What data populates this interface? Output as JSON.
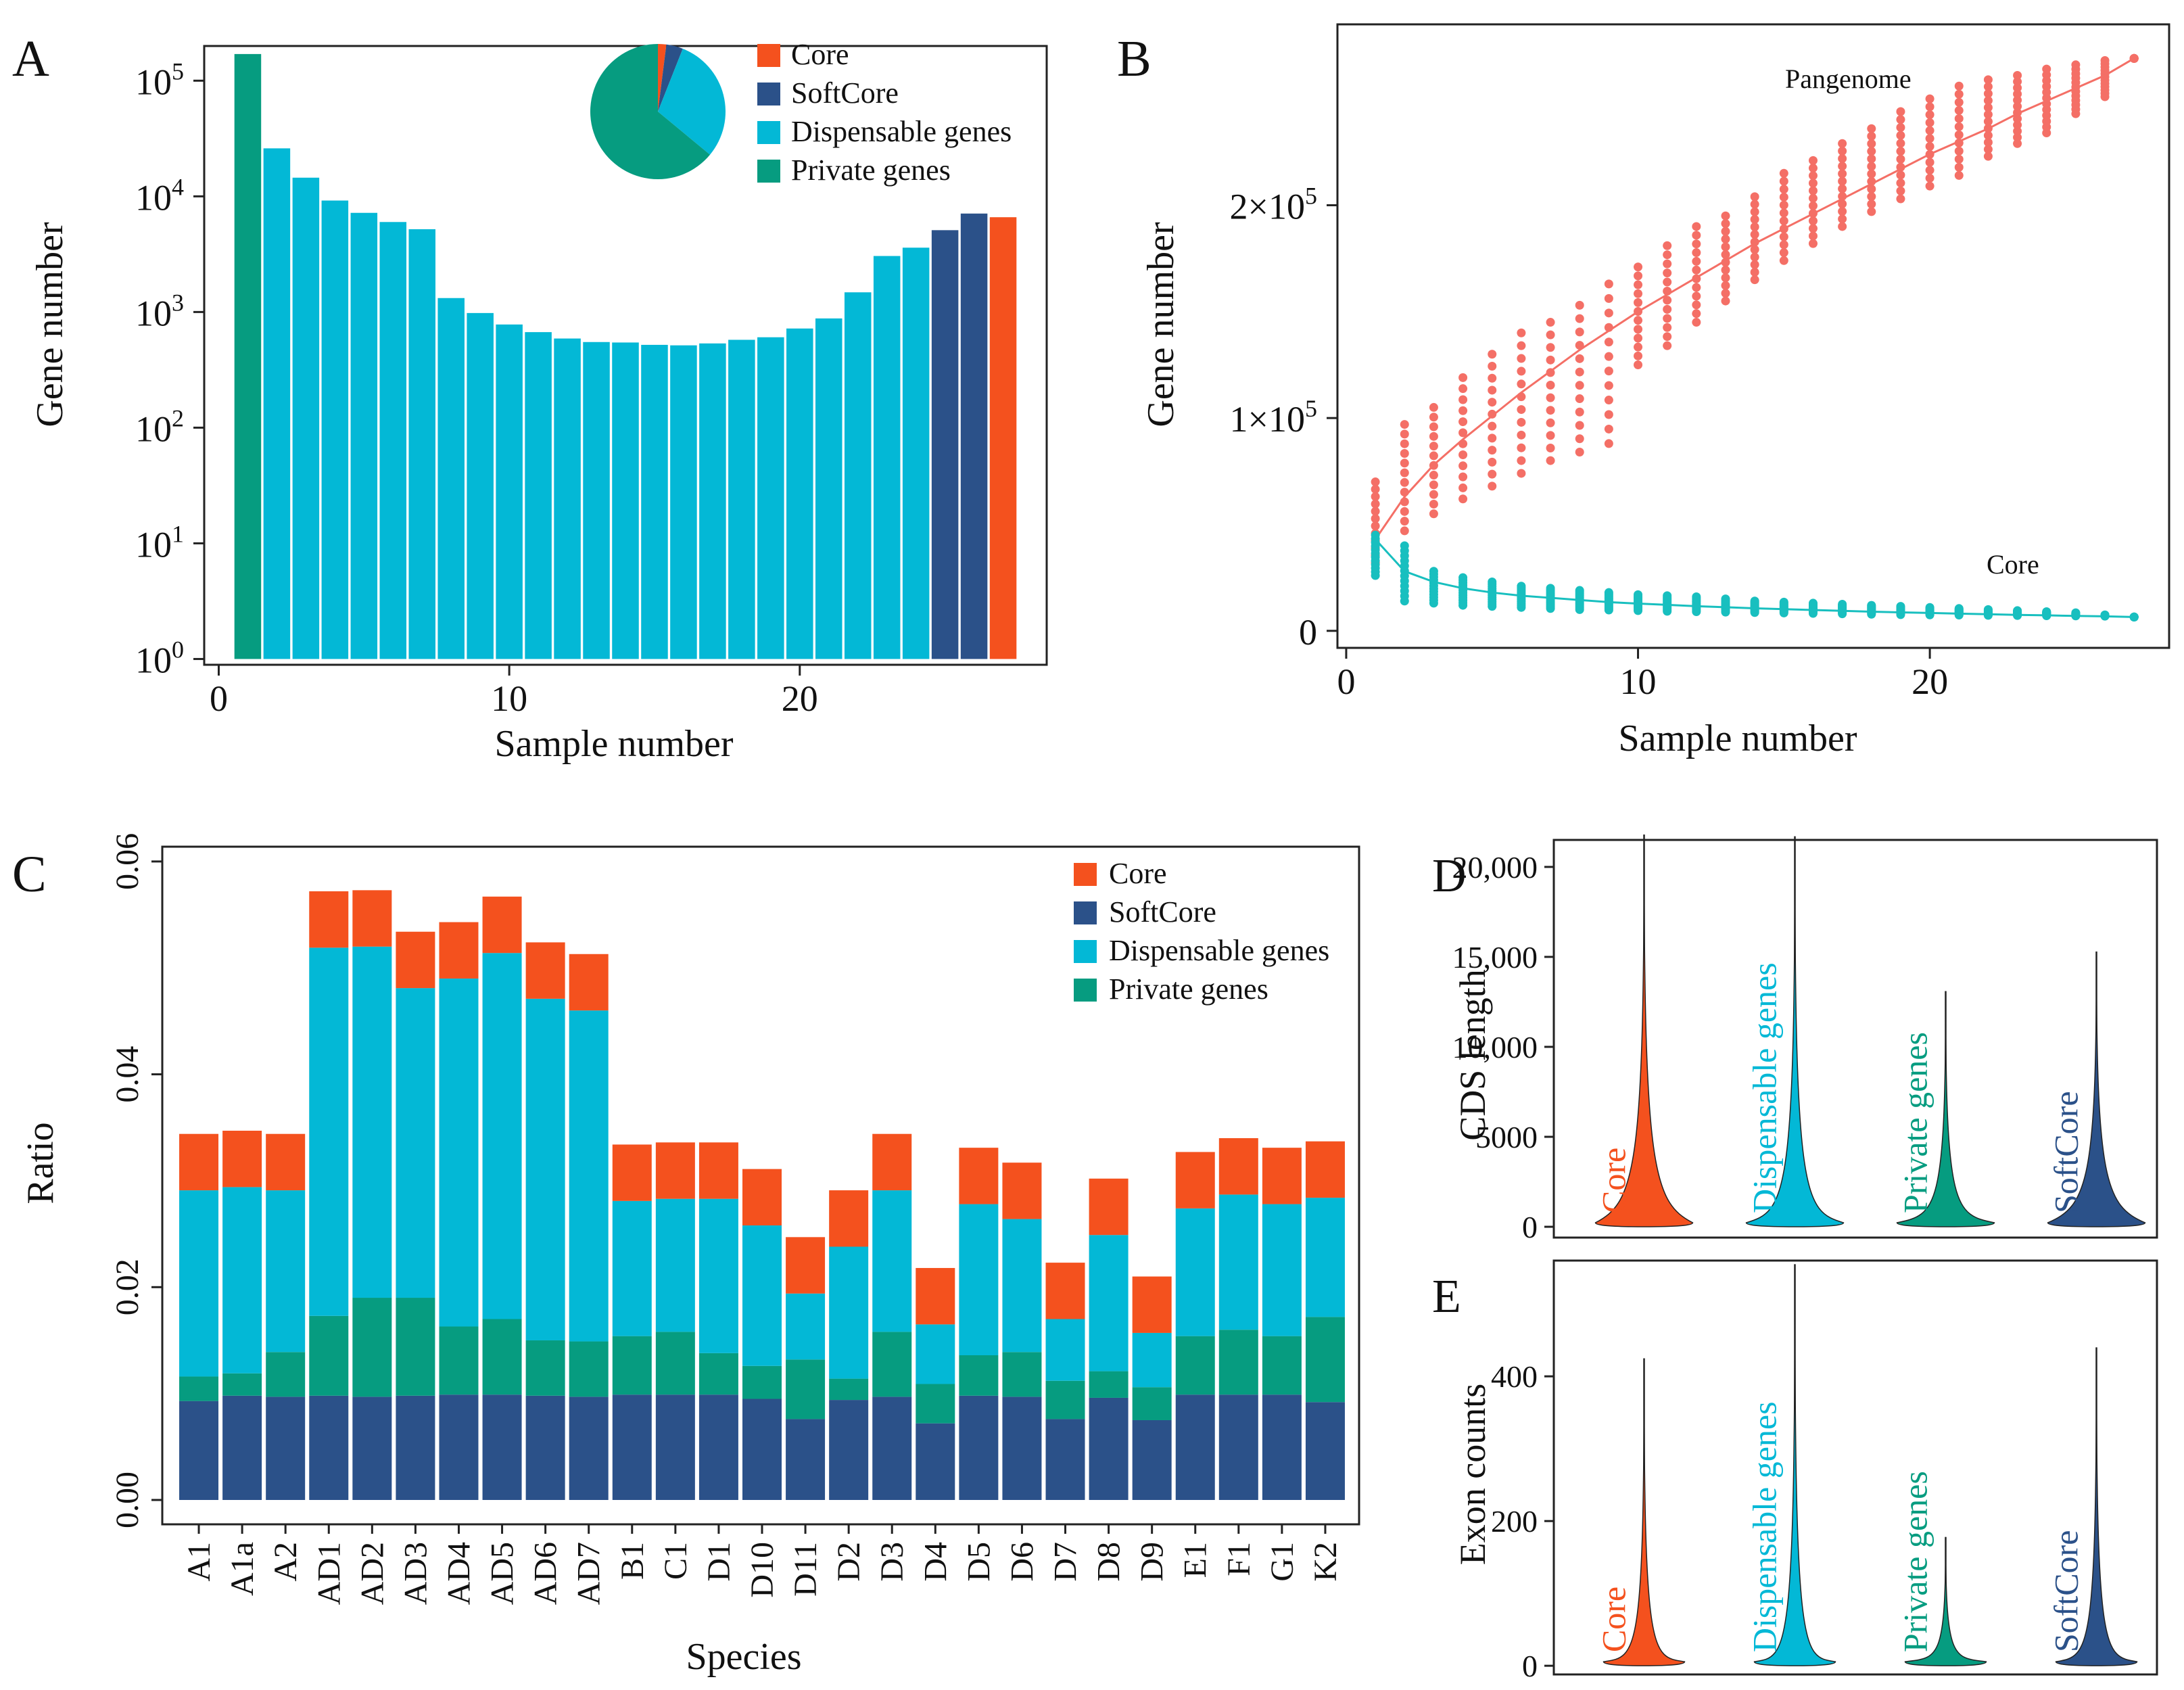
{
  "figure": {
    "panel_letters": [
      "A",
      "B",
      "C",
      "D",
      "E"
    ],
    "colors": {
      "core": "#F4511E",
      "softcore": "#2B5189",
      "dispensable": "#03B8D6",
      "private": "#069C80",
      "pan_line": "#F46F66",
      "core_line": "#18BFBF"
    },
    "legend": [
      "Core",
      "SoftCore",
      "Dispensable genes",
      "Private genes"
    ]
  },
  "chart_data": [
    {
      "panel": "A",
      "type": "bar",
      "scale": "log10",
      "xlabel": "Sample number",
      "ylabel": "Gene number",
      "xticks": [
        "0",
        "10",
        "20"
      ],
      "yticks": [
        {
          "base": "10",
          "exp": "0"
        },
        {
          "base": "10",
          "exp": "1"
        },
        {
          "base": "10",
          "exp": "2"
        },
        {
          "base": "10",
          "exp": "3"
        },
        {
          "base": "10",
          "exp": "4"
        },
        {
          "base": "10",
          "exp": "5"
        }
      ],
      "xlim": [
        -0.5,
        28.5
      ],
      "ylim_log10": [
        -0.05,
        5.3
      ],
      "x": [
        1,
        2,
        3,
        4,
        5,
        6,
        7,
        8,
        9,
        10,
        11,
        12,
        13,
        14,
        15,
        16,
        17,
        18,
        19,
        20,
        21,
        22,
        23,
        24,
        25,
        26,
        27
      ],
      "values": [
        170000,
        26000,
        14500,
        9200,
        7200,
        6000,
        5200,
        1320,
        980,
        780,
        670,
        590,
        550,
        545,
        520,
        515,
        535,
        575,
        605,
        720,
        880,
        1480,
        3050,
        3600,
        5100,
        7100,
        6600
      ],
      "categories": [
        "private",
        "dispensable",
        "dispensable",
        "dispensable",
        "dispensable",
        "dispensable",
        "dispensable",
        "dispensable",
        "dispensable",
        "dispensable",
        "dispensable",
        "dispensable",
        "dispensable",
        "dispensable",
        "dispensable",
        "dispensable",
        "dispensable",
        "dispensable",
        "dispensable",
        "dispensable",
        "dispensable",
        "dispensable",
        "dispensable",
        "dispensable",
        "softcore",
        "softcore",
        "core"
      ],
      "inset_pie": {
        "labels": [
          "Core",
          "SoftCore",
          "Dispensable genes",
          "Private genes"
        ],
        "values": [
          2,
          4,
          30,
          64
        ]
      }
    },
    {
      "panel": "B",
      "type": "scatter",
      "xlabel": "Sample number",
      "ylabel": "Gene number",
      "xticks": [
        "0",
        "10",
        "20"
      ],
      "yticks": [
        {
          "label": "0",
          "value": 0
        },
        {
          "label": "1×10",
          "exp": "5",
          "value": 100000
        },
        {
          "label": "2×10",
          "exp": "5",
          "value": 200000
        }
      ],
      "xlim": [
        -0.3,
        28.2
      ],
      "ylim": [
        -8000,
        285000
      ],
      "annotations": [
        "Pangenome",
        "Core"
      ],
      "series": [
        {
          "name": "Pangenome",
          "x": [
            1,
            2,
            3,
            4,
            5,
            6,
            7,
            8,
            9,
            10,
            11,
            12,
            13,
            14,
            15,
            16,
            17,
            18,
            19,
            20,
            21,
            22,
            23,
            24,
            25,
            26,
            27
          ],
          "min": [
            32000,
            47000,
            55000,
            62000,
            68000,
            74000,
            80000,
            84000,
            88000,
            125000,
            134000,
            145000,
            155000,
            165000,
            174000,
            182000,
            190000,
            197000,
            203000,
            209000,
            214000,
            223000,
            229000,
            234000,
            243000,
            251000,
            269000
          ],
          "max": [
            70000,
            97000,
            105000,
            119000,
            130000,
            140000,
            145000,
            153000,
            163000,
            171000,
            181000,
            190000,
            195000,
            204000,
            215000,
            221000,
            229000,
            236000,
            244000,
            250000,
            256000,
            259000,
            261000,
            264000,
            266000,
            268000,
            269000
          ],
          "fit": [
            43000,
            63000,
            78000,
            90000,
            101000,
            112000,
            122000,
            132000,
            141000,
            150000,
            158000,
            166000,
            174000,
            182000,
            189000,
            196000,
            203000,
            210000,
            217000,
            224000,
            230000,
            236000,
            243000,
            249000,
            255000,
            261000,
            269000
          ]
        },
        {
          "name": "Core",
          "x": [
            1,
            2,
            3,
            4,
            5,
            6,
            7,
            8,
            9,
            10,
            11,
            12,
            13,
            14,
            15,
            16,
            17,
            18,
            19,
            20,
            21,
            22,
            23,
            24,
            25,
            26,
            27
          ],
          "min": [
            26000,
            14000,
            13000,
            12000,
            11500,
            11000,
            10500,
            10000,
            9800,
            9500,
            9200,
            9000,
            8800,
            8600,
            8400,
            8200,
            8000,
            7800,
            7600,
            7500,
            7400,
            7300,
            7200,
            7100,
            7000,
            6900,
            6500
          ],
          "max": [
            45000,
            40000,
            28000,
            25000,
            23000,
            21000,
            20000,
            19000,
            18000,
            17000,
            16500,
            16000,
            15000,
            14000,
            13500,
            13000,
            12500,
            12000,
            11500,
            11000,
            10500,
            10000,
            9500,
            9000,
            8500,
            7500,
            6500
          ],
          "fit": [
            43000,
            28000,
            23000,
            20000,
            18000,
            16500,
            15500,
            14500,
            13500,
            12800,
            12200,
            11600,
            11100,
            10600,
            10200,
            9800,
            9400,
            9000,
            8700,
            8400,
            8100,
            7800,
            7500,
            7300,
            7000,
            6800,
            6500
          ]
        }
      ]
    },
    {
      "panel": "C",
      "type": "bar",
      "stacked": true,
      "xlabel": "Species",
      "ylabel": "Ratio",
      "yticks": [
        "0.00",
        "0.02",
        "0.04",
        "0.06"
      ],
      "ylim": [
        0,
        0.0605
      ],
      "categories": [
        "A1",
        "A1a",
        "A2",
        "AD1",
        "AD2",
        "AD3",
        "AD4",
        "AD5",
        "AD6",
        "AD7",
        "B1",
        "C1",
        "D1",
        "D10",
        "D11",
        "D2",
        "D3",
        "D4",
        "D5",
        "D6",
        "D7",
        "D8",
        "D9",
        "E1",
        "F1",
        "G1",
        "K2"
      ],
      "series": [
        {
          "name": "SoftCore",
          "values": [
            0.0093,
            0.0098,
            0.0097,
            0.0098,
            0.0097,
            0.0098,
            0.0099,
            0.0099,
            0.0098,
            0.0097,
            0.0099,
            0.0099,
            0.0099,
            0.0095,
            0.0076,
            0.0094,
            0.0097,
            0.0072,
            0.0098,
            0.0097,
            0.0076,
            0.0096,
            0.0075,
            0.0099,
            0.0099,
            0.0099,
            0.0092
          ]
        },
        {
          "name": "Private genes",
          "values": [
            0.0023,
            0.0021,
            0.0042,
            0.0075,
            0.0093,
            0.0092,
            0.0064,
            0.0071,
            0.0052,
            0.0052,
            0.0055,
            0.0059,
            0.0039,
            0.0031,
            0.0056,
            0.002,
            0.0061,
            0.0037,
            0.0038,
            0.0042,
            0.0036,
            0.0025,
            0.0031,
            0.0055,
            0.0061,
            0.0055,
            0.008
          ]
        },
        {
          "name": "Dispensable genes",
          "values": [
            0.0175,
            0.0175,
            0.0152,
            0.0346,
            0.033,
            0.0291,
            0.0327,
            0.0344,
            0.0321,
            0.0311,
            0.0127,
            0.0125,
            0.0145,
            0.0132,
            0.0062,
            0.0124,
            0.0133,
            0.0056,
            0.0142,
            0.0125,
            0.0058,
            0.0128,
            0.0051,
            0.012,
            0.0127,
            0.0124,
            0.0112
          ]
        },
        {
          "name": "Core",
          "values": [
            0.0053,
            0.0053,
            0.0053,
            0.0053,
            0.0053,
            0.0053,
            0.0053,
            0.0053,
            0.0053,
            0.0053,
            0.0053,
            0.0053,
            0.0053,
            0.0053,
            0.0053,
            0.0053,
            0.0053,
            0.0053,
            0.0053,
            0.0053,
            0.0053,
            0.0053,
            0.0053,
            0.0053,
            0.0053,
            0.0053,
            0.0053
          ]
        }
      ]
    },
    {
      "panel": "D",
      "type": "violin",
      "ylabel": "CDS length",
      "yticks": [
        "0",
        "5000",
        "10,000",
        "15,000",
        "20,000"
      ],
      "ylim": [
        -600,
        21500
      ],
      "groups": [
        {
          "name": "Core",
          "max": 21800,
          "mode": 1000
        },
        {
          "name": "Dispensable genes",
          "max": 21700,
          "mode": 500
        },
        {
          "name": "Private genes",
          "max": 13100,
          "mode": 300
        },
        {
          "name": "SoftCore",
          "max": 15300,
          "mode": 800
        }
      ]
    },
    {
      "panel": "E",
      "type": "violin",
      "ylabel": "Exon counts",
      "yticks": [
        "0",
        "200",
        "400"
      ],
      "ylim": [
        -12,
        560
      ],
      "groups": [
        {
          "name": "Core",
          "max": 425,
          "mode": 3
        },
        {
          "name": "Dispensable genes",
          "max": 555,
          "mode": 3
        },
        {
          "name": "Private genes",
          "max": 178,
          "mode": 2
        },
        {
          "name": "SoftCore",
          "max": 440,
          "mode": 4
        }
      ]
    }
  ]
}
